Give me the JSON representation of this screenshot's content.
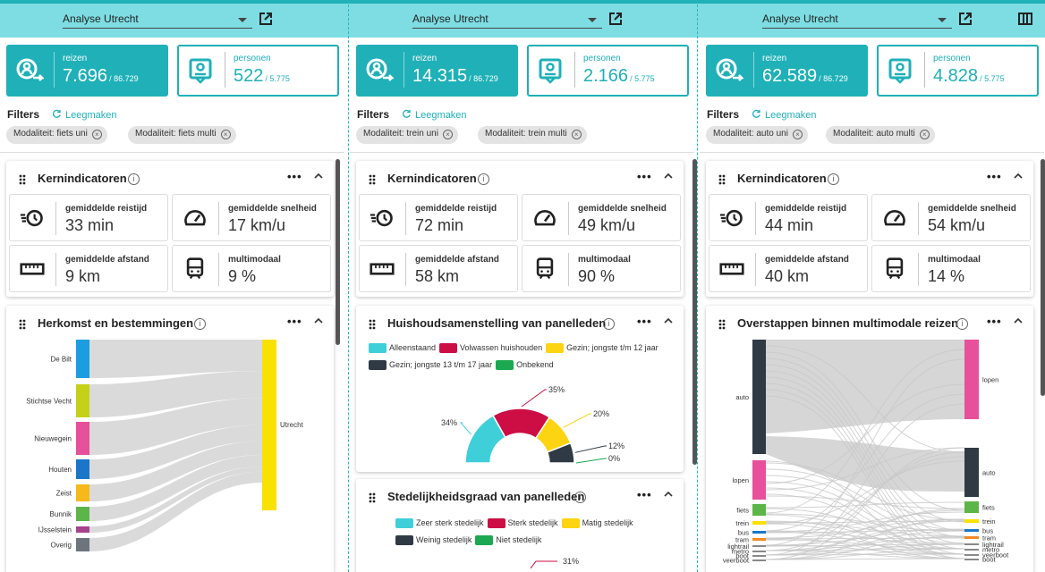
{
  "columns": [
    {
      "selector": "Analyse Utrecht",
      "reizen": {
        "label": "reizen",
        "value": "7.696",
        "total": "/ 86.729"
      },
      "personen": {
        "label": "personen",
        "value": "522",
        "total": "/ 5.775"
      },
      "filters_label": "Filters",
      "clear_label": "Leegmaken",
      "chips": [
        "Modaliteit: fiets uni",
        "Modaliteit: fiets multi"
      ],
      "kern": {
        "title": "Kernindicatoren",
        "items": [
          {
            "icon": "clock-icon",
            "label": "gemiddelde reistijd",
            "value": "33 min"
          },
          {
            "icon": "speedometer-icon",
            "label": "gemiddelde snelheid",
            "value": "17 km/u"
          },
          {
            "icon": "ruler-icon",
            "label": "gemiddelde afstand",
            "value": "9 km"
          },
          {
            "icon": "train-icon",
            "label": "multimodaal",
            "value": "9 %"
          }
        ]
      },
      "second_title": "Herkomst en bestemmingen",
      "sankey": {
        "left": [
          {
            "label": "De Bilt",
            "color": "#1a9ee0"
          },
          {
            "label": "Stichtse Vecht",
            "color": "#c5d117"
          },
          {
            "label": "Nieuwegein",
            "color": "#e7509a"
          },
          {
            "label": "Houten",
            "color": "#1976c9"
          },
          {
            "label": "Zeist",
            "color": "#f7b918"
          },
          {
            "label": "Bunnik",
            "color": "#5cb548"
          },
          {
            "label": "IJsselstein",
            "color": "#a9428f"
          },
          {
            "label": "Overig",
            "color": "#6d747c"
          }
        ],
        "right": {
          "label": "Utrecht",
          "color": "#f9e100"
        }
      }
    },
    {
      "selector": "Analyse Utrecht",
      "reizen": {
        "label": "reizen",
        "value": "14.315",
        "total": "/ 86.729"
      },
      "personen": {
        "label": "personen",
        "value": "2.166",
        "total": "/ 5.775"
      },
      "filters_label": "Filters",
      "clear_label": "Leegmaken",
      "chips": [
        "Modaliteit: trein uni",
        "Modaliteit: trein multi"
      ],
      "kern": {
        "title": "Kernindicatoren",
        "items": [
          {
            "icon": "clock-icon",
            "label": "gemiddelde reistijd",
            "value": "72 min"
          },
          {
            "icon": "speedometer-icon",
            "label": "gemiddelde snelheid",
            "value": "49 km/u"
          },
          {
            "icon": "ruler-icon",
            "label": "gemiddelde afstand",
            "value": "58 km"
          },
          {
            "icon": "train-icon",
            "label": "multimodaal",
            "value": "90 %"
          }
        ]
      },
      "second_title": "Huishoudsamenstelling van panelleden",
      "third_title": "Stedelijkheidsgraad van panelleden",
      "household_legend": [
        {
          "label": "Alleenstaand",
          "color": "#3fcfd9"
        },
        {
          "label": "Volwassen huishouden",
          "color": "#cc0e44"
        },
        {
          "label": "Gezin; jongste t/m 12 jaar",
          "color": "#fcd412"
        },
        {
          "label": "Gezin; jongste 13 t/m 17 jaar",
          "color": "#2f3a45"
        },
        {
          "label": "Onbekend",
          "color": "#1ba850"
        }
      ],
      "urban_legend": [
        {
          "label": "Zeer sterk stedelijk",
          "color": "#3fcfd9"
        },
        {
          "label": "Sterk stedelijk",
          "color": "#cc0e44"
        },
        {
          "label": "Matig stedelijk",
          "color": "#fcd412"
        },
        {
          "label": "Weinig stedelijk",
          "color": "#2f3a45"
        },
        {
          "label": "Niet stedelijk",
          "color": "#1ba850"
        }
      ],
      "urban_partial_label": "31%"
    },
    {
      "selector": "Analyse Utrecht",
      "reizen": {
        "label": "reizen",
        "value": "62.589",
        "total": "/ 86.729"
      },
      "personen": {
        "label": "personen",
        "value": "4.828",
        "total": "/ 5.775"
      },
      "filters_label": "Filters",
      "clear_label": "Leegmaken",
      "chips": [
        "Modaliteit: auto uni",
        "Modaliteit: auto multi"
      ],
      "kern": {
        "title": "Kernindicatoren",
        "items": [
          {
            "icon": "clock-icon",
            "label": "gemiddelde reistijd",
            "value": "44 min"
          },
          {
            "icon": "speedometer-icon",
            "label": "gemiddelde snelheid",
            "value": "54 km/u"
          },
          {
            "icon": "ruler-icon",
            "label": "gemiddelde afstand",
            "value": "40 km"
          },
          {
            "icon": "train-icon",
            "label": "multimodaal",
            "value": "14 %"
          }
        ]
      },
      "second_title": "Overstappen binnen multimodale reizen",
      "sankey": {
        "left": [
          {
            "label": "auto",
            "color": "#2f3a45"
          },
          {
            "label": "lopen",
            "color": "#e7509a"
          },
          {
            "label": "fiets",
            "color": "#5cb548"
          },
          {
            "label": "trein",
            "color": "#f9e100"
          },
          {
            "label": "bus",
            "color": "#1976c9"
          },
          {
            "label": "tram",
            "color": "#f08a24"
          },
          {
            "label": "lightrail",
            "color": "#888888"
          },
          {
            "label": "metro",
            "color": "#888888"
          },
          {
            "label": "boot",
            "color": "#888888"
          },
          {
            "label": "veerboot",
            "color": "#888888"
          }
        ],
        "right": [
          {
            "label": "lopen",
            "color": "#e7509a"
          },
          {
            "label": "auto",
            "color": "#2f3a45"
          },
          {
            "label": "fiets",
            "color": "#5cb548"
          },
          {
            "label": "trein",
            "color": "#f9e100"
          },
          {
            "label": "bus",
            "color": "#1976c9"
          },
          {
            "label": "tram",
            "color": "#f08a24"
          },
          {
            "label": "lightrail",
            "color": "#888888"
          },
          {
            "label": "metro",
            "color": "#888888"
          },
          {
            "label": "veerboot",
            "color": "#888888"
          },
          {
            "label": "boot",
            "color": "#888888"
          }
        ]
      }
    }
  ],
  "chart_data": {
    "type": "pie",
    "variant": "half-donut",
    "categories": [
      "Alleenstaand",
      "Volwassen huishouden",
      "Gezin; jongste t/m 12 jaar",
      "Gezin; jongste 13 t/m 17 jaar",
      "Onbekend"
    ],
    "values": [
      34,
      35,
      20,
      12,
      0
    ],
    "data_labels": [
      "34%",
      "35%",
      "20%",
      "12%",
      "0%"
    ],
    "colors": [
      "#3fcfd9",
      "#cc0e44",
      "#fcd412",
      "#2f3a45",
      "#1ba850"
    ],
    "legend": "top"
  }
}
